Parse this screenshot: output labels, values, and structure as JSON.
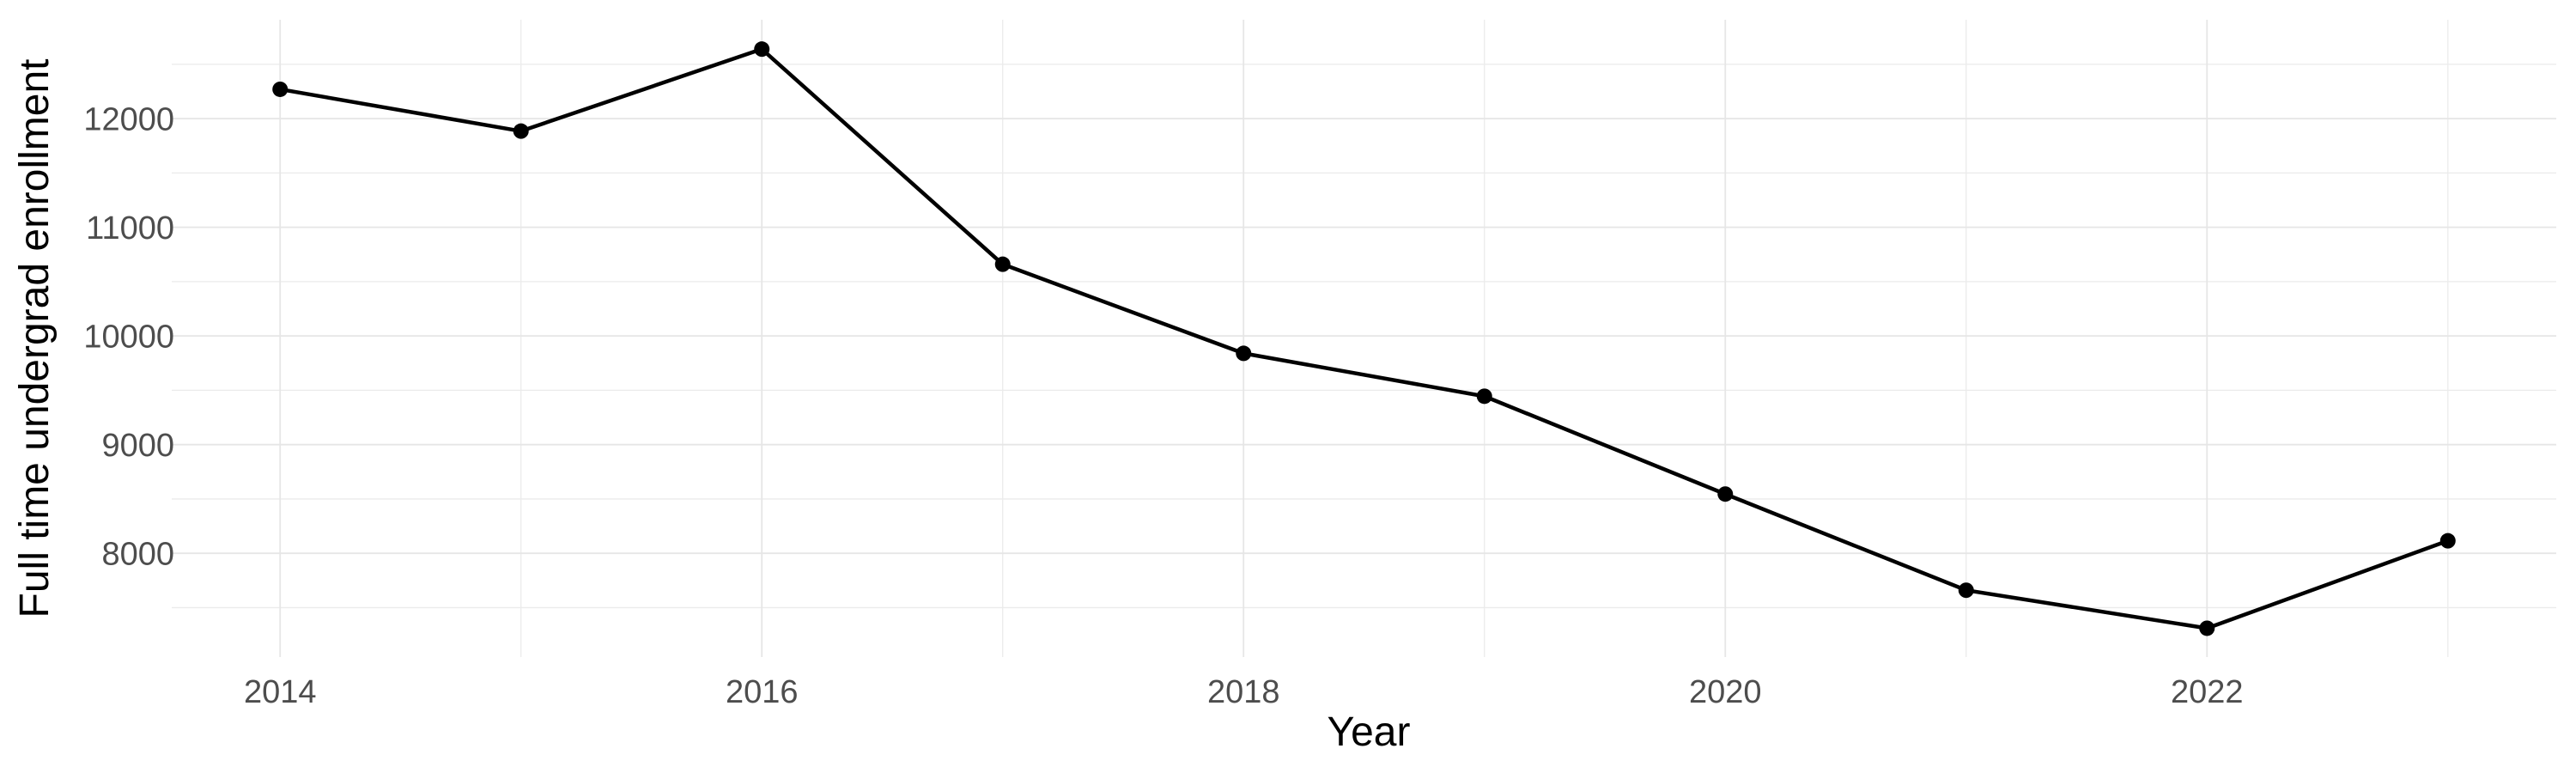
{
  "chart_data": {
    "type": "line",
    "title": "",
    "xlabel": "Year",
    "ylabel": "Full time undergrad enrollment",
    "x": [
      2014,
      2015,
      2016,
      2017,
      2018,
      2019,
      2020,
      2021,
      2022,
      2023
    ],
    "series": [
      {
        "name": "Full time undergrad enrollment",
        "values": [
          12270,
          11885,
          12640,
          10660,
          9840,
          9445,
          8545,
          7660,
          7310,
          8115
        ]
      }
    ],
    "x_tick_labels": [
      2014,
      2016,
      2018,
      2020,
      2022
    ],
    "x_minor_breaks": [
      2015,
      2017,
      2019,
      2021,
      2023
    ],
    "y_tick_labels": [
      8000,
      9000,
      10000,
      11000,
      12000
    ],
    "y_minor_breaks": [
      7500,
      8500,
      9500,
      10500,
      11500,
      12500
    ],
    "xlim": [
      2013.55,
      2023.45
    ],
    "ylim": [
      7045,
      12910
    ],
    "grid": "major+minor, light gray on white, no panel border, no tick marks",
    "legend_position": "none",
    "colors": {
      "line": "#000000",
      "point": "#000000",
      "grid_major": "#E6E6E6",
      "grid_minor": "#EBEBEB",
      "tick_label": "#4D4D4D",
      "axis_title": "#000000",
      "background": "#FFFFFF"
    }
  }
}
